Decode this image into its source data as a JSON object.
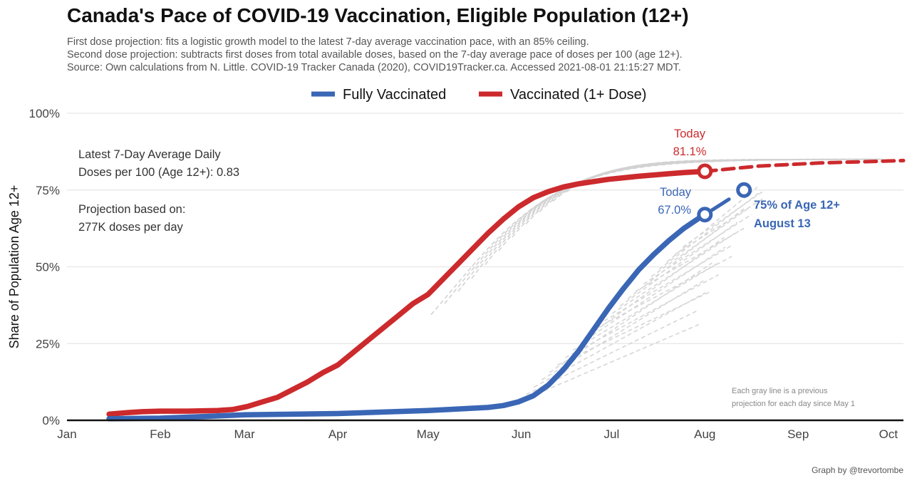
{
  "header": {
    "title": "Canada's Pace of COVID-19 Vaccination, Eligible Population (12+)",
    "subtitle_lines": [
      "First dose projection: fits a logistic growth model to the latest 7-day average vaccination pace, with an 85% ceiling.",
      "Second dose projection: subtracts first doses from total available doses, based on the 7-day average pace of doses per 100 (age 12+).",
      "Source: Own calculations from N. Little. COVID-19 Tracker Canada (2020), COVID19Tracker.ca. Accessed 2021-08-01 21:15:27 MDT."
    ]
  },
  "chart_data": {
    "type": "line",
    "ylabel": "Share of Population Age 12+",
    "xlabel": "",
    "ylim": [
      0,
      100
    ],
    "y_ticks": [
      {
        "value": 0,
        "label": "0%"
      },
      {
        "value": 25,
        "label": "25%"
      },
      {
        "value": 50,
        "label": "50%"
      },
      {
        "value": 75,
        "label": "75%"
      },
      {
        "value": 100,
        "label": "100%"
      }
    ],
    "x_ticks": [
      {
        "day": 0,
        "label": "Jan"
      },
      {
        "day": 31,
        "label": "Feb"
      },
      {
        "day": 59,
        "label": "Mar"
      },
      {
        "day": 90,
        "label": "Apr"
      },
      {
        "day": 120,
        "label": "May"
      },
      {
        "day": 151,
        "label": "Jun"
      },
      {
        "day": 181,
        "label": "Jul"
      },
      {
        "day": 212,
        "label": "Aug"
      },
      {
        "day": 243,
        "label": "Sep"
      },
      {
        "day": 273,
        "label": "Oct"
      }
    ],
    "xlim": [
      0,
      278
    ],
    "legend": {
      "placement": "top",
      "entries": [
        {
          "name": "Fully Vaccinated",
          "color": "#3a66b5"
        },
        {
          "name": "Vaccinated (1+ Dose)",
          "color": "#cc2a2d"
        }
      ]
    },
    "series": [
      {
        "name": "Vaccinated (1+ Dose)",
        "color": "#cc2a2d",
        "x": [
          14,
          20,
          25,
          31,
          40,
          50,
          55,
          60,
          65,
          70,
          75,
          80,
          85,
          90,
          95,
          100,
          105,
          110,
          115,
          120,
          125,
          130,
          135,
          140,
          145,
          150,
          155,
          160,
          165,
          170,
          180,
          190,
          200,
          205,
          212
        ],
        "y": [
          2,
          2.5,
          2.8,
          3,
          3,
          3.2,
          3.5,
          4.5,
          6,
          7.5,
          10,
          12.5,
          15.5,
          18,
          22,
          26,
          30,
          34,
          38,
          41,
          46,
          51,
          56,
          61,
          65.5,
          69.5,
          72.5,
          74.5,
          76,
          77,
          78.5,
          79.5,
          80.3,
          80.7,
          81.1
        ]
      },
      {
        "name": "Fully Vaccinated",
        "color": "#3a66b5",
        "x": [
          14,
          31,
          45,
          59,
          75,
          90,
          105,
          120,
          130,
          140,
          145,
          150,
          155,
          160,
          165,
          170,
          175,
          180,
          185,
          190,
          195,
          200,
          205,
          210,
          212
        ],
        "y": [
          0.5,
          0.7,
          1.2,
          1.8,
          2,
          2.2,
          2.7,
          3.2,
          3.7,
          4.2,
          4.8,
          6,
          8,
          11.5,
          16.5,
          22.5,
          29.5,
          36.5,
          43,
          49,
          54,
          58.5,
          62.5,
          65.8,
          67
        ]
      },
      {
        "name": "Fully Vaccinated (projection)",
        "color": "#3a66b5",
        "projection": true,
        "x": [
          212,
          216,
          220
        ],
        "y": [
          67,
          69.5,
          72
        ]
      },
      {
        "name": "Vaccinated (1+ Dose) (projection)",
        "color": "#cc2a2d",
        "projection": true,
        "x": [
          212,
          230,
          250,
          278
        ],
        "y": [
          81.1,
          82.8,
          83.8,
          84.6
        ]
      }
    ],
    "gray_projections_note": "Each gray line is a previous projection for each day since May 1",
    "markers": [
      {
        "series": "Vaccinated (1+ Dose)",
        "day": 212,
        "value": 81.1
      },
      {
        "series": "Fully Vaccinated",
        "day": 212,
        "value": 67.0
      },
      {
        "series": "Fully Vaccinated",
        "day": 225,
        "value": 75
      }
    ],
    "annotations": {
      "today_red_label": "Today",
      "today_red_value": "81.1%",
      "today_blue_label": "Today",
      "today_blue_value": "67.0%",
      "target_line1": "75% of Age 12+",
      "target_line2": "August 13",
      "pace_line1": "Latest 7-Day Average Daily",
      "pace_line2": "Doses per 100 (Age 12+): 0.83",
      "basis_line1": "Projection based on:",
      "basis_line2": "277K doses per day",
      "gray_note_line1": "Each gray line is a previous",
      "gray_note_line2": "projection for each day since May 1"
    }
  },
  "footer": {
    "credit": "Graph by @trevortombe"
  }
}
